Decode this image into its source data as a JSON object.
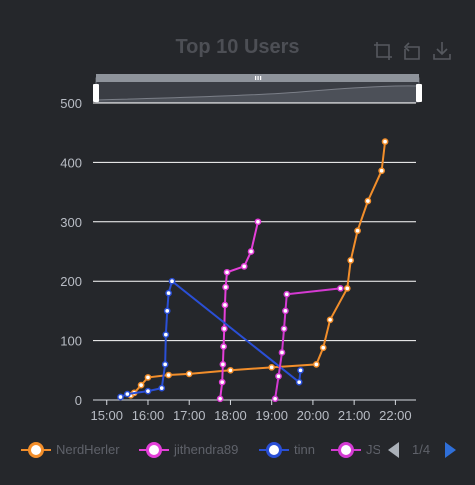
{
  "chart_data": {
    "type": "line",
    "title": "Top 10 Users",
    "xlabel": "",
    "ylabel": "",
    "x_ticks": [
      "15:00",
      "16:00",
      "17:00",
      "18:00",
      "19:00",
      "20:00",
      "21:00",
      "22:00"
    ],
    "y_ticks": [
      "0",
      "100",
      "200",
      "300",
      "400",
      "500"
    ],
    "ylim": [
      0,
      500
    ],
    "xlim": [
      "14:40",
      "22:30"
    ],
    "grid": "horizontal",
    "legend_position": "bottom",
    "series": [
      {
        "name": "NerdHerler",
        "color": "#f28e2b",
        "points": [
          [
            "15:35",
            8
          ],
          [
            "15:40",
            12
          ],
          [
            "15:50",
            25
          ],
          [
            "16:00",
            38
          ],
          [
            "16:30",
            42
          ],
          [
            "17:00",
            44
          ],
          [
            "18:00",
            50
          ],
          [
            "19:00",
            55
          ],
          [
            "20:05",
            60
          ],
          [
            "20:15",
            88
          ],
          [
            "20:25",
            135
          ],
          [
            "20:50",
            188
          ],
          [
            "20:55",
            235
          ],
          [
            "21:05",
            285
          ],
          [
            "21:20",
            335
          ],
          [
            "21:40",
            386
          ],
          [
            "21:45",
            435
          ]
        ]
      },
      {
        "name": "jithendra89",
        "color": "#e43fd9",
        "points": [
          [
            "17:45",
            2
          ],
          [
            "17:48",
            30
          ],
          [
            "17:49",
            60
          ],
          [
            "17:50",
            90
          ],
          [
            "17:51",
            120
          ],
          [
            "17:52",
            160
          ],
          [
            "17:53",
            190
          ],
          [
            "17:55",
            215
          ],
          [
            "18:20",
            225
          ],
          [
            "18:30",
            250
          ],
          [
            "18:40",
            300
          ]
        ]
      },
      {
        "name": "tinn",
        "color": "#2a4fd6",
        "points": [
          [
            "15:20",
            5
          ],
          [
            "15:30",
            10
          ],
          [
            "16:00",
            15
          ],
          [
            "16:20",
            20
          ],
          [
            "16:25",
            60
          ],
          [
            "16:26",
            110
          ],
          [
            "16:28",
            150
          ],
          [
            "16:30",
            180
          ],
          [
            "16:35",
            200
          ],
          [
            "19:40",
            30
          ],
          [
            "19:42",
            50
          ]
        ]
      },
      {
        "name": "JS",
        "color": "#d43ad2",
        "points": [
          [
            "19:05",
            2
          ],
          [
            "19:10",
            40
          ],
          [
            "19:15",
            80
          ],
          [
            "19:18",
            120
          ],
          [
            "19:20",
            150
          ],
          [
            "19:22",
            178
          ],
          [
            "20:40",
            188
          ]
        ]
      }
    ]
  },
  "legend": {
    "items": [
      {
        "name": "NerdHerler",
        "color": "#f28e2b"
      },
      {
        "name": "jithendra89",
        "color": "#e43fd9"
      },
      {
        "name": "tinn",
        "color": "#2a4fd6"
      },
      {
        "name": "JS",
        "color": "#d43ad2"
      }
    ],
    "page": "1/4"
  },
  "toolbox": {
    "icons": [
      "zoom-icon",
      "restore-icon",
      "download-icon"
    ]
  }
}
